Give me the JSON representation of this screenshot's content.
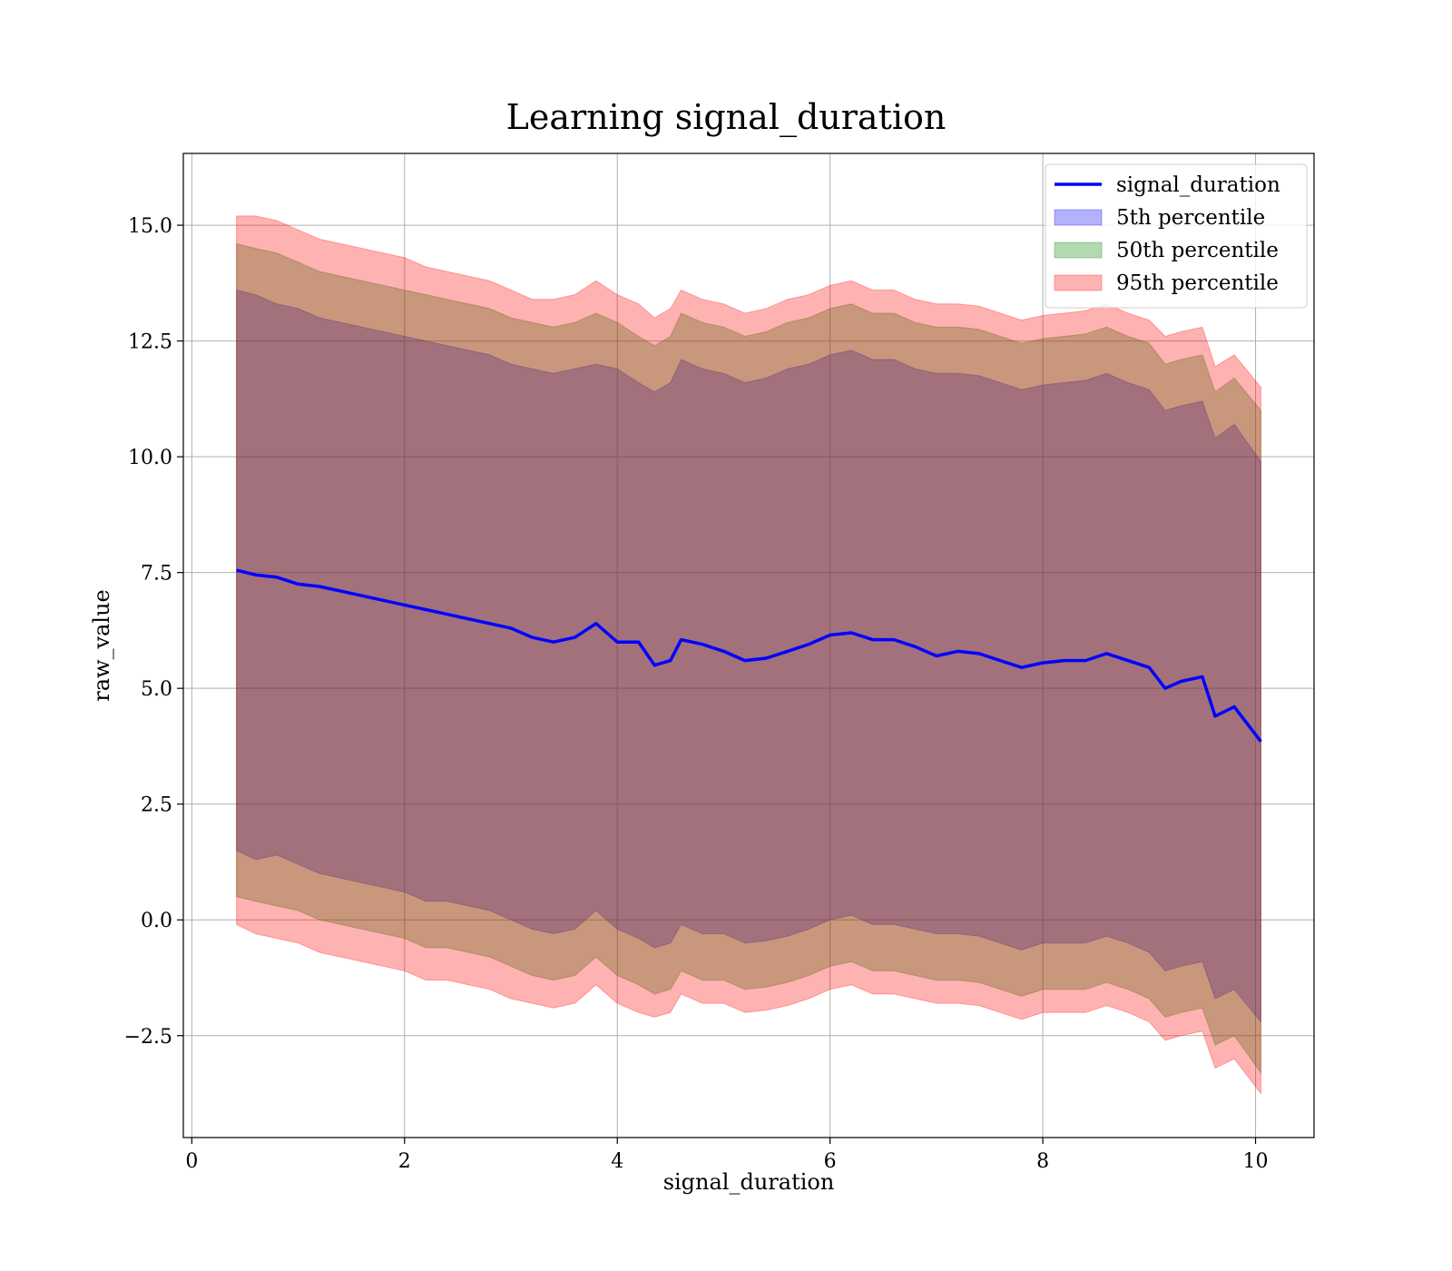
{
  "chart_data": {
    "type": "area",
    "title": "Learning signal_duration",
    "xlabel": "signal_duration",
    "ylabel": "raw_value",
    "xlim": [
      -0.08,
      10.55
    ],
    "ylim": [
      -4.7,
      16.55
    ],
    "xticks": [
      0,
      2,
      4,
      6,
      8,
      10
    ],
    "yticks": [
      -2.5,
      0.0,
      2.5,
      5.0,
      7.5,
      10.0,
      12.5,
      15.0
    ],
    "ytick_labels": [
      "−2.5",
      "0.0",
      "2.5",
      "5.0",
      "7.5",
      "10.0",
      "12.5",
      "15.0"
    ],
    "grid": true,
    "legend_position": "top-right",
    "x": [
      0.42,
      0.6,
      0.8,
      1.0,
      1.2,
      1.4,
      1.6,
      1.8,
      2.0,
      2.2,
      2.4,
      2.6,
      2.8,
      3.0,
      3.2,
      3.4,
      3.6,
      3.8,
      4.0,
      4.2,
      4.35,
      4.5,
      4.6,
      4.8,
      5.0,
      5.2,
      5.4,
      5.6,
      5.8,
      6.0,
      6.2,
      6.4,
      6.6,
      6.8,
      7.0,
      7.2,
      7.4,
      7.6,
      7.8,
      8.0,
      8.2,
      8.4,
      8.6,
      8.8,
      9.0,
      9.15,
      9.3,
      9.5,
      9.62,
      9.8,
      10.05
    ],
    "series": [
      {
        "name": "signal_duration",
        "kind": "line",
        "color": "#0000ff",
        "values": [
          7.55,
          7.45,
          7.4,
          7.25,
          7.2,
          7.1,
          7.0,
          6.9,
          6.8,
          6.7,
          6.6,
          6.5,
          6.4,
          6.3,
          6.1,
          6.0,
          6.1,
          6.4,
          6.0,
          6.0,
          5.5,
          5.6,
          6.05,
          5.95,
          5.8,
          5.6,
          5.65,
          5.8,
          5.95,
          6.15,
          6.2,
          6.05,
          6.05,
          5.9,
          5.7,
          5.8,
          5.75,
          5.6,
          5.45,
          5.55,
          5.6,
          5.6,
          5.75,
          5.6,
          5.45,
          5.0,
          5.15,
          5.25,
          4.4,
          4.6,
          3.85
        ]
      },
      {
        "name": "5th percentile",
        "kind": "band",
        "color": "#0000ff",
        "lower": [
          1.5,
          1.3,
          1.4,
          1.2,
          1.0,
          0.9,
          0.8,
          0.7,
          0.6,
          0.4,
          0.4,
          0.3,
          0.2,
          0.0,
          -0.2,
          -0.3,
          -0.2,
          0.2,
          -0.2,
          -0.4,
          -0.6,
          -0.5,
          -0.1,
          -0.3,
          -0.3,
          -0.5,
          -0.45,
          -0.35,
          -0.2,
          0.0,
          0.1,
          -0.1,
          -0.1,
          -0.2,
          -0.3,
          -0.3,
          -0.35,
          -0.5,
          -0.65,
          -0.5,
          -0.5,
          -0.5,
          -0.35,
          -0.5,
          -0.7,
          -1.1,
          -1.0,
          -0.9,
          -1.7,
          -1.5,
          -2.2
        ],
        "upper": [
          13.6,
          13.5,
          13.3,
          13.2,
          13.0,
          12.9,
          12.8,
          12.7,
          12.6,
          12.5,
          12.4,
          12.3,
          12.2,
          12.0,
          11.9,
          11.8,
          11.9,
          12.0,
          11.9,
          11.6,
          11.4,
          11.6,
          12.1,
          11.9,
          11.8,
          11.6,
          11.7,
          11.9,
          12.0,
          12.2,
          12.3,
          12.1,
          12.1,
          11.9,
          11.8,
          11.8,
          11.75,
          11.6,
          11.45,
          11.55,
          11.6,
          11.65,
          11.8,
          11.6,
          11.45,
          11.0,
          11.1,
          11.2,
          10.4,
          10.7,
          9.9
        ]
      },
      {
        "name": "50th percentile",
        "kind": "band",
        "color": "#008000",
        "lower": [
          0.5,
          0.4,
          0.3,
          0.2,
          0.0,
          -0.1,
          -0.2,
          -0.3,
          -0.4,
          -0.6,
          -0.6,
          -0.7,
          -0.8,
          -1.0,
          -1.2,
          -1.3,
          -1.2,
          -0.8,
          -1.2,
          -1.4,
          -1.6,
          -1.5,
          -1.1,
          -1.3,
          -1.3,
          -1.5,
          -1.45,
          -1.35,
          -1.2,
          -1.0,
          -0.9,
          -1.1,
          -1.1,
          -1.2,
          -1.3,
          -1.3,
          -1.35,
          -1.5,
          -1.65,
          -1.5,
          -1.5,
          -1.5,
          -1.35,
          -1.5,
          -1.7,
          -2.1,
          -2.0,
          -1.9,
          -2.7,
          -2.5,
          -3.3
        ],
        "upper": [
          14.6,
          14.5,
          14.4,
          14.2,
          14.0,
          13.9,
          13.8,
          13.7,
          13.6,
          13.5,
          13.4,
          13.3,
          13.2,
          13.0,
          12.9,
          12.8,
          12.9,
          13.1,
          12.9,
          12.6,
          12.4,
          12.6,
          13.1,
          12.9,
          12.8,
          12.6,
          12.7,
          12.9,
          13.0,
          13.2,
          13.3,
          13.1,
          13.1,
          12.9,
          12.8,
          12.8,
          12.75,
          12.6,
          12.45,
          12.55,
          12.6,
          12.65,
          12.8,
          12.6,
          12.45,
          12.0,
          12.1,
          12.2,
          11.4,
          11.7,
          11.0
        ]
      },
      {
        "name": "95th percentile",
        "kind": "band",
        "color": "#ff0000",
        "lower": [
          -0.1,
          -0.3,
          -0.4,
          -0.5,
          -0.7,
          -0.8,
          -0.9,
          -1.0,
          -1.1,
          -1.3,
          -1.3,
          -1.4,
          -1.5,
          -1.7,
          -1.8,
          -1.9,
          -1.8,
          -1.4,
          -1.8,
          -2.0,
          -2.1,
          -2.0,
          -1.6,
          -1.8,
          -1.8,
          -2.0,
          -1.95,
          -1.85,
          -1.7,
          -1.5,
          -1.4,
          -1.6,
          -1.6,
          -1.7,
          -1.8,
          -1.8,
          -1.85,
          -2.0,
          -2.15,
          -2.0,
          -2.0,
          -2.0,
          -1.85,
          -2.0,
          -2.2,
          -2.6,
          -2.5,
          -2.4,
          -3.2,
          -3.0,
          -3.75
        ],
        "upper": [
          15.2,
          15.2,
          15.1,
          14.9,
          14.7,
          14.6,
          14.5,
          14.4,
          14.3,
          14.1,
          14.0,
          13.9,
          13.8,
          13.6,
          13.4,
          13.4,
          13.5,
          13.8,
          13.5,
          13.3,
          13.0,
          13.2,
          13.6,
          13.4,
          13.3,
          13.1,
          13.2,
          13.4,
          13.5,
          13.7,
          13.8,
          13.6,
          13.6,
          13.4,
          13.3,
          13.3,
          13.25,
          13.1,
          12.95,
          13.05,
          13.1,
          13.15,
          13.3,
          13.1,
          12.95,
          12.6,
          12.7,
          12.8,
          11.95,
          12.2,
          11.5
        ]
      }
    ]
  }
}
